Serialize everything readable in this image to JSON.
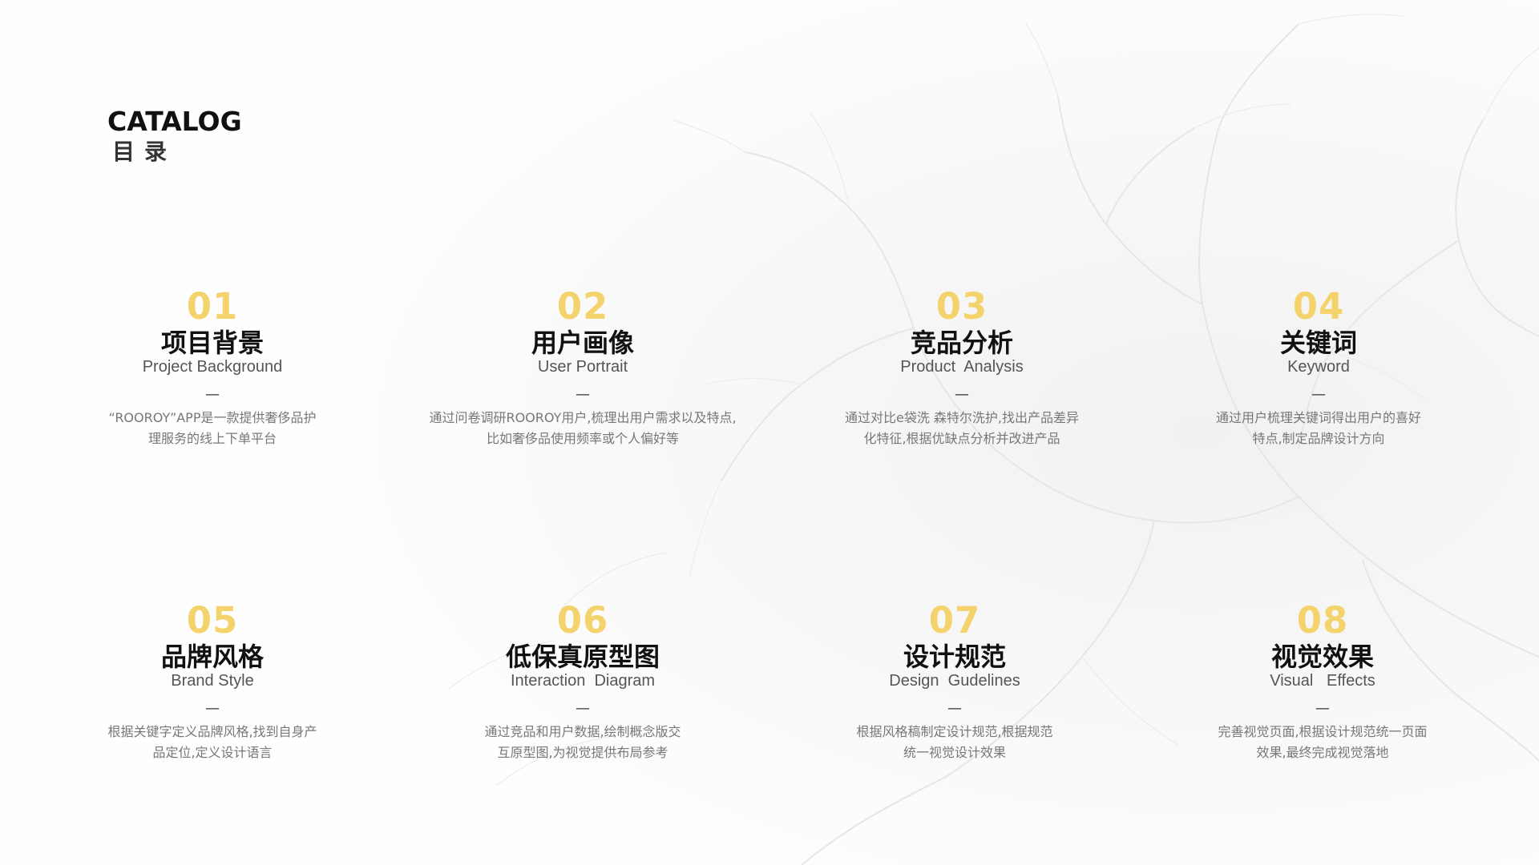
{
  "header": {
    "title_en": "CATALOG",
    "title_zh": "目录"
  },
  "items": [
    {
      "number": "01",
      "title": "项目背景",
      "subtitle": "Project Background",
      "dash": "—",
      "desc_line1": "“ROOROY”APP是一款提供奢侈品护",
      "desc_line2": "理服务的线上下单平台"
    },
    {
      "number": "02",
      "title": "用户画像",
      "subtitle": "User Portrait",
      "dash": "—",
      "desc_line1": "通过问卷调研ROOROY用户,梳理出用户需求以及特点,",
      "desc_line2": "比如奢侈品使用频率或个人偏好等"
    },
    {
      "number": "03",
      "title": "竞品分析",
      "subtitle": "Product  Analysis",
      "dash": "—",
      "desc_line1": "通过对比e袋洗 森特尔洗护,找出产品差异",
      "desc_line2": "化特征,根据优缺点分析并改进产品"
    },
    {
      "number": "04",
      "title": "关键词",
      "subtitle": "Keyword",
      "dash": "—",
      "desc_line1": "通过用户梳理关键词得出用户的喜好",
      "desc_line2": "特点,制定品牌设计方向"
    },
    {
      "number": "05",
      "title": "品牌风格",
      "subtitle": "Brand Style",
      "dash": "—",
      "desc_line1": "根据关键字定义品牌风格,找到自身产",
      "desc_line2": "品定位,定义设计语言"
    },
    {
      "number": "06",
      "title": "低保真原型图",
      "subtitle": "Interaction  Diagram",
      "dash": "—",
      "desc_line1": "通过竞品和用户数据,绘制概念版交",
      "desc_line2": "互原型图,为视觉提供布局参考"
    },
    {
      "number": "07",
      "title": "设计规范",
      "subtitle": "Design  Gudelines",
      "dash": "—",
      "desc_line1": "根据风格稿制定设计规范,根据规范",
      "desc_line2": "统一视觉设计效果"
    },
    {
      "number": "08",
      "title": "视觉效果",
      "subtitle": "Visual   Effects",
      "dash": "—",
      "desc_line1": "完善视觉页面,根据设计规范统一页面",
      "desc_line2": "效果,最终完成视觉落地"
    }
  ]
}
